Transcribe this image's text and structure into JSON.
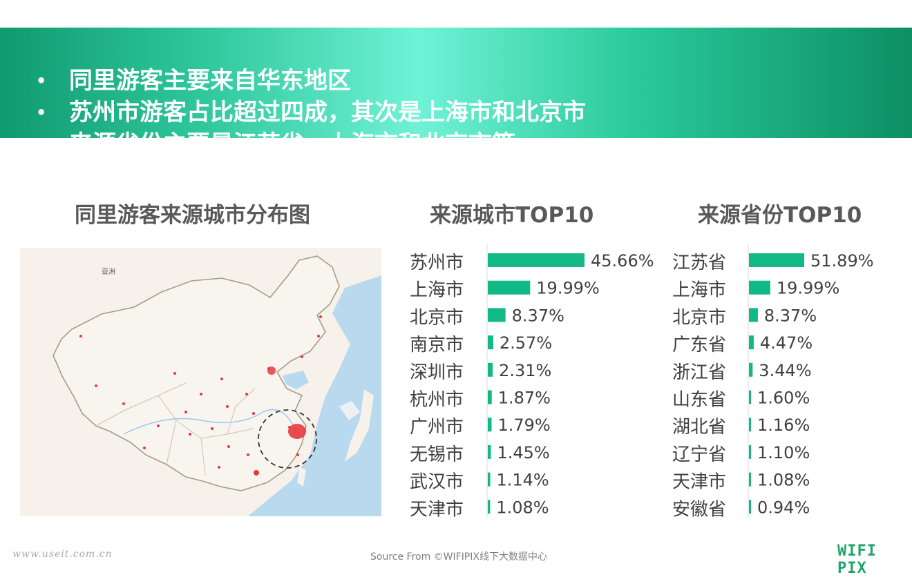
{
  "bullets": [
    "同里游客主要来自华东地区",
    "苏州市游客占比超过四成，其次是上海市和北京市",
    "来源省份主要是江苏省，上海市和北京市等"
  ],
  "map": {
    "title": "同里游客来源城市分布图",
    "label_asia": "亚洲",
    "colors": {
      "land": "#f6f1ea",
      "sea": "#b9d9ef",
      "hotspot": "#e8393c"
    }
  },
  "chart_data": [
    {
      "type": "bar",
      "title": "来源城市TOP10",
      "categories": [
        "苏州市",
        "上海市",
        "北京市",
        "南京市",
        "深圳市",
        "杭州市",
        "广州市",
        "无锡市",
        "武汉市",
        "天津市"
      ],
      "values": [
        45.66,
        19.99,
        8.37,
        2.57,
        2.31,
        1.87,
        1.79,
        1.45,
        1.14,
        1.08
      ],
      "value_labels": [
        "45.66%",
        "19.99%",
        "8.37%",
        "2.57%",
        "2.31%",
        "1.87%",
        "1.79%",
        "1.45%",
        "1.14%",
        "1.08%"
      ],
      "orientation": "horizontal",
      "color": "#12b886"
    },
    {
      "type": "bar",
      "title": "来源省份TOP10",
      "categories": [
        "江苏省",
        "上海市",
        "北京市",
        "广东省",
        "浙江省",
        "山东省",
        "湖北省",
        "辽宁省",
        "天津市",
        "安徽省"
      ],
      "values": [
        51.89,
        19.99,
        8.37,
        4.47,
        3.44,
        1.6,
        1.16,
        1.1,
        1.08,
        0.94
      ],
      "value_labels": [
        "51.89%",
        "19.99%",
        "8.37%",
        "4.47%",
        "3.44%",
        "1.60%",
        "1.16%",
        "1.10%",
        "1.08%",
        "0.94%"
      ],
      "orientation": "horizontal",
      "color": "#12b886"
    }
  ],
  "footer": {
    "watermark": "www.useit.com.cn",
    "source": "Source From ©WIFIPIX线下大数据中心",
    "logo": "WIFI PIX"
  }
}
